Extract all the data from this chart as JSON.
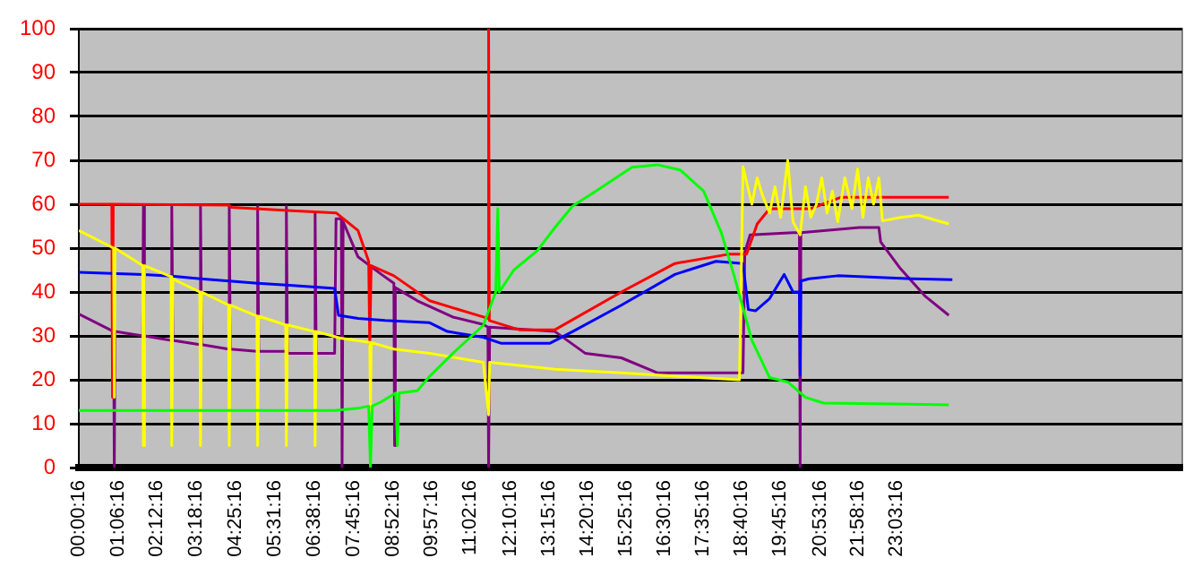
{
  "chart_data": {
    "type": "line",
    "xlim": [
      0,
      31.1
    ],
    "xticks": [
      {
        "value": 0.0044,
        "label": "00:00:16"
      },
      {
        "value": 1.1044,
        "label": "01:06:16"
      },
      {
        "value": 2.2044,
        "label": "02:12:16"
      },
      {
        "value": 3.3044,
        "label": "03:18:16"
      },
      {
        "value": 4.4211,
        "label": "04:25:16"
      },
      {
        "value": 5.5211,
        "label": "05:31:16"
      },
      {
        "value": 6.6378,
        "label": "06:38:16"
      },
      {
        "value": 7.7544,
        "label": "07:45:16"
      },
      {
        "value": 8.8711,
        "label": "08:52:16"
      },
      {
        "value": 9.9544,
        "label": "09:57:16"
      },
      {
        "value": 11.0378,
        "label": "11:02:16"
      },
      {
        "value": 12.1711,
        "label": "12:10:16"
      },
      {
        "value": 13.2544,
        "label": "13:15:16"
      },
      {
        "value": 14.3378,
        "label": "14:20:16"
      },
      {
        "value": 15.4211,
        "label": "15:25:16"
      },
      {
        "value": 16.5044,
        "label": "16:30:16"
      },
      {
        "value": 17.5878,
        "label": "17:35:16"
      },
      {
        "value": 18.6711,
        "label": "18:40:16"
      },
      {
        "value": 19.7544,
        "label": "19:45:16"
      },
      {
        "value": 20.8878,
        "label": "20:53:16"
      },
      {
        "value": 21.9711,
        "label": "21:58:16"
      },
      {
        "value": 23.0544,
        "label": "23:03:16"
      }
    ],
    "ylim": [
      0,
      100
    ],
    "yticks": [
      0,
      10,
      20,
      30,
      40,
      50,
      60,
      70,
      80,
      90,
      100
    ],
    "grid": "y",
    "legend": false,
    "marker": "none",
    "line_style": "solid",
    "series": [
      {
        "color": "#00ff00",
        "x": [
          0,
          7.21,
          7.87,
          8.17,
          8.22,
          8.27,
          8.53,
          8.93,
          8.98,
          9.03,
          9.54,
          9.89,
          10.54,
          11.4,
          11.75,
          11.81,
          11.85,
          12.26,
          12.92,
          13.42,
          13.92,
          14.58,
          15.59,
          16.3,
          16.95,
          17.61,
          18.11,
          18.46,
          18.97,
          19.47,
          19.98,
          20.48,
          20.99,
          24.52
        ],
        "values": [
          13,
          13,
          13.5,
          14,
          0,
          14,
          15,
          17,
          5,
          17,
          17.5,
          20.8,
          26,
          32.4,
          40,
          59,
          40,
          45,
          49.4,
          54.7,
          59.6,
          63,
          68.4,
          69,
          67.8,
          63,
          53.5,
          44,
          29,
          20.5,
          19.5,
          16,
          14.7,
          14.3
        ]
      },
      {
        "color": "#ffff00",
        "x": [
          0,
          0.98,
          1,
          1.02,
          1.8,
          1.82,
          1.85,
          2.6,
          2.62,
          2.65,
          3.41,
          3.43,
          3.46,
          4.22,
          4.24,
          4.27,
          5.02,
          5.04,
          5.07,
          5.83,
          5.85,
          5.88,
          6.64,
          6.66,
          6.69,
          7.37,
          8.2,
          8.22,
          8.24,
          8.88,
          9.89,
          11.4,
          11.55,
          11.58,
          13.42,
          15.29,
          16.8,
          18.62,
          18.72,
          18.97,
          19.12,
          19.27,
          19.47,
          19.62,
          19.78,
          19.98,
          20.13,
          20.33,
          20.48,
          20.63,
          20.79,
          20.94,
          21.09,
          21.24,
          21.39,
          21.59,
          21.79,
          21.95,
          22.1,
          22.25,
          22.4,
          22.55,
          22.65,
          23.16,
          23.66,
          24.52
        ],
        "values": [
          54,
          50,
          16,
          50,
          46,
          5,
          46,
          43.5,
          5,
          43,
          40,
          5,
          40,
          37,
          5,
          37,
          34.5,
          5,
          34.5,
          32.5,
          5,
          32.5,
          31,
          5,
          31,
          29.5,
          28.5,
          13,
          28.5,
          27,
          26,
          24,
          12,
          24,
          22.4,
          21.6,
          20.8,
          20,
          68.5,
          60,
          66,
          62,
          58,
          64,
          57,
          70,
          56,
          53,
          64,
          57,
          60,
          66,
          58,
          63,
          56,
          66,
          59,
          68,
          57,
          66,
          60,
          66,
          56.2,
          57,
          57.5,
          55.5
        ]
      },
      {
        "color": "#0000ff",
        "x": [
          0,
          1.82,
          2.62,
          3.43,
          4.24,
          5.04,
          5.85,
          6.86,
          7.21,
          7.32,
          7.87,
          8.63,
          9.89,
          10.39,
          11.4,
          11.91,
          13.27,
          13.92,
          15.29,
          16.8,
          17.96,
          18.72,
          18.87,
          19.07,
          19.47,
          19.88,
          20.13,
          20.31,
          20.33,
          20.35,
          20.58,
          21.39,
          23.51,
          24.62
        ],
        "values": [
          44.5,
          44,
          43.6,
          43,
          42.5,
          42,
          41.6,
          41,
          40.8,
          34.7,
          34,
          33.5,
          33,
          31,
          29.7,
          28.3,
          28.3,
          31,
          37,
          44,
          47,
          46.5,
          36,
          35.7,
          38.5,
          44,
          40,
          40,
          21,
          42.5,
          43,
          43.7,
          43,
          42.8
        ]
      },
      {
        "color": "#ff0000",
        "x": [
          0,
          0.93,
          0.95,
          0.97,
          4.24,
          4.3,
          6,
          7.26,
          7.87,
          8.17,
          8.2,
          8.24,
          8.88,
          9.89,
          11.4,
          11.53,
          11.55,
          11.57,
          12.41,
          13.42,
          15.29,
          16.8,
          18.31,
          18.82,
          19.12,
          19.47,
          20.63,
          21.49,
          24.52
        ],
        "values": [
          60,
          60,
          16,
          60,
          59.8,
          59.3,
          58.5,
          58,
          54,
          47,
          28,
          46,
          43.7,
          38,
          34.3,
          34,
          100,
          33.5,
          31.4,
          31.4,
          40,
          46.5,
          48.6,
          48.6,
          55.5,
          59,
          59,
          61.6,
          61.6
        ]
      },
      {
        "color": "#800080",
        "x": [
          0,
          0.98,
          1,
          1.02,
          1.8,
          1.82,
          1.85,
          2.6,
          2.62,
          2.65,
          3.41,
          3.43,
          3.46,
          4.22,
          4.24,
          4.27,
          5.02,
          5.04,
          5.07,
          5.83,
          5.85,
          5.88,
          6.64,
          6.66,
          6.69,
          7.21,
          7.25,
          7.4,
          7.42,
          7.45,
          7.87,
          8.53,
          8.88,
          8.9,
          8.92,
          9.54,
          10.54,
          11.4,
          11.53,
          11.55,
          11.58,
          13.42,
          14.28,
          15.29,
          16.3,
          18.62,
          18.72,
          18.77,
          18.92,
          20.13,
          20.31,
          20.33,
          20.35,
          22,
          22.55,
          22.6,
          23.16,
          23.86,
          24.52
        ],
        "values": [
          35,
          31,
          0,
          31,
          30,
          59.5,
          30,
          29,
          59.5,
          29,
          28,
          59.5,
          28,
          27,
          59.5,
          27,
          26.5,
          59.5,
          26.5,
          26.5,
          59.5,
          26,
          26,
          58,
          26,
          26,
          56.7,
          56.7,
          0,
          56,
          48,
          44,
          42,
          5,
          41,
          38,
          34.3,
          32.6,
          32,
          0,
          32,
          31,
          26,
          25,
          21.6,
          21.6,
          21.6,
          49,
          53,
          53.5,
          53.5,
          0,
          53.5,
          54.7,
          54.7,
          51.4,
          45.3,
          39,
          34.7
        ]
      }
    ]
  }
}
